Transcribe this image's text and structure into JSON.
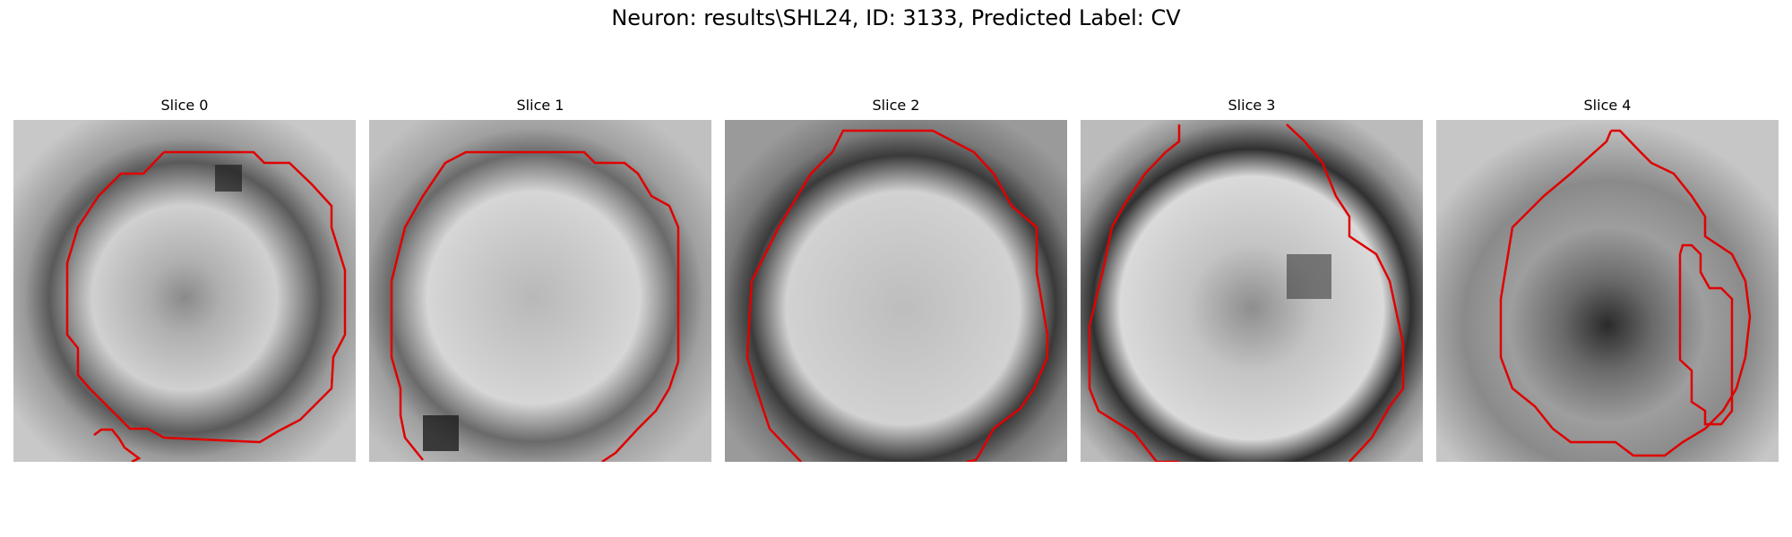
{
  "figure": {
    "title": "Neuron: results\\SHL24, ID: 3133, Predicted Label: CV"
  },
  "panels": [
    {
      "title": "Slice 0",
      "contour_color": "#e00000",
      "image": "grayscale-em-slice"
    },
    {
      "title": "Slice 1",
      "contour_color": "#e00000",
      "image": "grayscale-em-slice"
    },
    {
      "title": "Slice 2",
      "contour_color": "#e00000",
      "image": "grayscale-em-slice"
    },
    {
      "title": "Slice 3",
      "contour_color": "#e00000",
      "image": "grayscale-em-slice"
    },
    {
      "title": "Slice 4",
      "contour_color": "#e00000",
      "image": "grayscale-em-slice"
    }
  ]
}
